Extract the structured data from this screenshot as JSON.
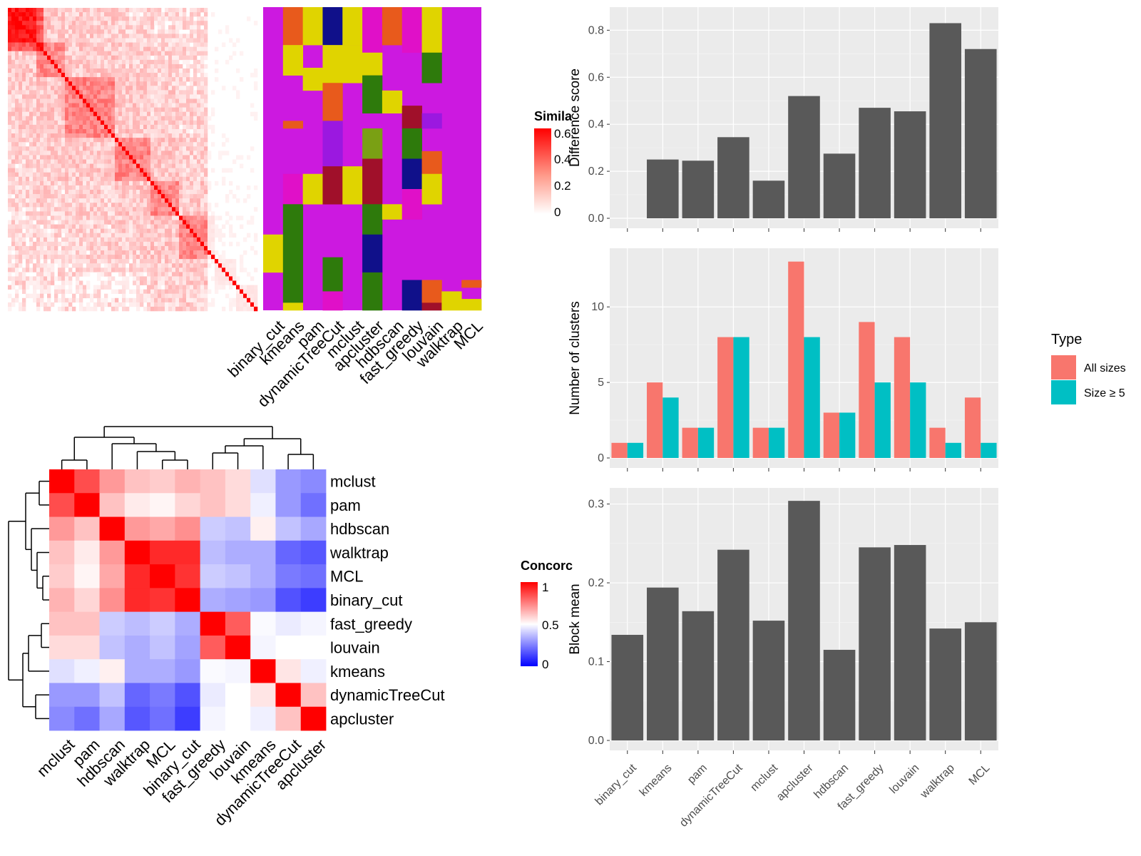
{
  "colors": {
    "panel_bg": "#ebebeb",
    "grid": "#ffffff",
    "bar_gray": "#595959",
    "all_sizes": "#f8766d",
    "size5": "#00bfc4",
    "magenta": "#cc19e0",
    "yellow": "#e0d400",
    "orange": "#e85a1c",
    "navy": "#10108a",
    "pink": "#e010c8",
    "green": "#2e7a0c",
    "darkred": "#a0102a",
    "olive": "#7aa014",
    "purple": "#9b18e0",
    "red": "#ff0000",
    "blue": "#0000ff"
  },
  "similarity_legend": {
    "title": "Simila",
    "ticks": [
      "0.6",
      "0.4",
      "0.2",
      "0"
    ]
  },
  "concordance_legend": {
    "title": "Concorc",
    "ticks": [
      "1",
      "0.5",
      "0"
    ]
  },
  "type_legend": {
    "title": "Type",
    "items": [
      {
        "label": "All sizes",
        "color": "#f8766d"
      },
      {
        "label": "Size ≥ 5",
        "color": "#00bfc4"
      }
    ]
  },
  "class_heatmap": {
    "methods": [
      "binary_cut",
      "kmeans",
      "pam",
      "dynamicTreeCut",
      "mclust",
      "apcluster",
      "hdbscan",
      "fast_greedy",
      "louvain",
      "walktrap",
      "MCL"
    ]
  },
  "concordance_heatmap": {
    "methods": [
      "mclust",
      "pam",
      "hdbscan",
      "walktrap",
      "MCL",
      "binary_cut",
      "fast_greedy",
      "louvain",
      "kmeans",
      "dynamicTreeCut",
      "apcluster"
    ],
    "matrix": [
      [
        1.0,
        0.85,
        0.7,
        0.62,
        0.6,
        0.65,
        0.62,
        0.57,
        0.44,
        0.3,
        0.27
      ],
      [
        0.85,
        1.0,
        0.62,
        0.54,
        0.52,
        0.58,
        0.62,
        0.57,
        0.47,
        0.3,
        0.22
      ],
      [
        0.7,
        0.62,
        1.0,
        0.7,
        0.67,
        0.72,
        0.4,
        0.38,
        0.53,
        0.38,
        0.33
      ],
      [
        0.62,
        0.54,
        0.7,
        1.0,
        0.92,
        0.92,
        0.37,
        0.34,
        0.34,
        0.2,
        0.17
      ],
      [
        0.6,
        0.52,
        0.67,
        0.92,
        1.0,
        0.9,
        0.4,
        0.38,
        0.34,
        0.24,
        0.22
      ],
      [
        0.65,
        0.58,
        0.72,
        0.92,
        0.9,
        1.0,
        0.34,
        0.32,
        0.3,
        0.16,
        0.12
      ],
      [
        0.62,
        0.62,
        0.4,
        0.37,
        0.4,
        0.34,
        1.0,
        0.82,
        0.49,
        0.46,
        0.48
      ],
      [
        0.57,
        0.57,
        0.38,
        0.34,
        0.38,
        0.32,
        0.82,
        1.0,
        0.48,
        0.5,
        0.5
      ],
      [
        0.44,
        0.47,
        0.53,
        0.34,
        0.34,
        0.3,
        0.49,
        0.48,
        1.0,
        0.55,
        0.47
      ],
      [
        0.3,
        0.3,
        0.38,
        0.2,
        0.24,
        0.16,
        0.46,
        0.5,
        0.55,
        1.0,
        0.62
      ],
      [
        0.27,
        0.22,
        0.33,
        0.17,
        0.22,
        0.12,
        0.48,
        0.5,
        0.47,
        0.62,
        1.0
      ]
    ]
  },
  "chart_data": [
    {
      "type": "bar",
      "ylabel": "Difference score",
      "categories": [
        "binary_cut",
        "kmeans",
        "pam",
        "dynamicTreeCut",
        "mclust",
        "apcluster",
        "hdbscan",
        "fast_greedy",
        "louvain",
        "walktrap",
        "MCL"
      ],
      "values": [
        0.0,
        0.25,
        0.245,
        0.345,
        0.16,
        0.52,
        0.275,
        0.47,
        0.455,
        0.83,
        0.72
      ],
      "ylim": [
        0,
        0.88
      ],
      "yticks": [
        "0.0",
        "0.2",
        "0.4",
        "0.6",
        "0.8"
      ],
      "grid": true
    },
    {
      "type": "bar",
      "ylabel": "Number of clusters",
      "categories": [
        "binary_cut",
        "kmeans",
        "pam",
        "dynamicTreeCut",
        "mclust",
        "apcluster",
        "hdbscan",
        "fast_greedy",
        "louvain",
        "walktrap",
        "MCL"
      ],
      "series": [
        {
          "name": "All sizes",
          "values": [
            1,
            5,
            2,
            8,
            2,
            13,
            3,
            9,
            8,
            2,
            4
          ]
        },
        {
          "name": "Size ≥ 5",
          "values": [
            1,
            4,
            2,
            8,
            2,
            8,
            3,
            5,
            5,
            1,
            1
          ]
        }
      ],
      "ylim": [
        0,
        13.6
      ],
      "yticks": [
        "0",
        "5",
        "10"
      ],
      "grid": true,
      "legend": "right"
    },
    {
      "type": "bar",
      "ylabel": "Block mean",
      "categories": [
        "binary_cut",
        "kmeans",
        "pam",
        "dynamicTreeCut",
        "mclust",
        "apcluster",
        "hdbscan",
        "fast_greedy",
        "louvain",
        "walktrap",
        "MCL"
      ],
      "values": [
        0.134,
        0.194,
        0.164,
        0.242,
        0.152,
        0.304,
        0.115,
        0.245,
        0.248,
        0.142,
        0.15
      ],
      "ylim": [
        0,
        0.315
      ],
      "yticks": [
        "0.0",
        "0.1",
        "0.2",
        "0.3"
      ],
      "grid": true
    }
  ]
}
